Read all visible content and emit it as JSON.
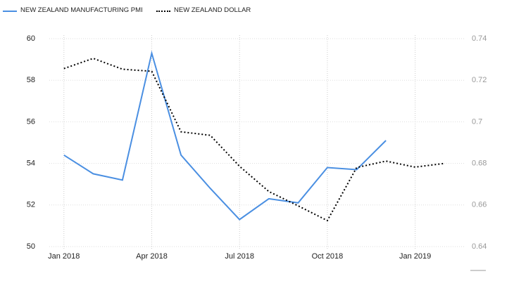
{
  "chart_data": {
    "type": "line",
    "categories": [
      "Jan 2018",
      null,
      null,
      "Apr 2018",
      null,
      null,
      "Jul 2018",
      null,
      null,
      "Oct 2018",
      null,
      null,
      "Jan 2019",
      null
    ],
    "series": [
      {
        "name": "NEW ZEALAND MANUFACTURING PMI",
        "color": "#4a8fe2",
        "values": [
          54.4,
          53.5,
          53.2,
          59.3,
          54.4,
          52.8,
          51.3,
          52.3,
          52.1,
          53.8,
          53.7,
          55.1,
          null,
          null
        ]
      },
      {
        "name": "NEW ZEALAND DOLLAR",
        "color": "#000000",
        "axis": "y2",
        "values": [
          0.7256,
          0.7305,
          0.7253,
          0.7243,
          0.6952,
          0.6935,
          0.6786,
          0.6665,
          0.6596,
          0.6525,
          0.678,
          0.6811,
          0.6782,
          0.68
        ]
      }
    ],
    "ylim": [
      50,
      60
    ],
    "yticks": [
      50,
      52,
      54,
      56,
      58,
      60
    ],
    "y2lim": [
      0.64,
      0.74
    ],
    "y2ticks": [
      0.64,
      0.66,
      0.68,
      0.7,
      0.72,
      0.74
    ],
    "grid": true
  }
}
